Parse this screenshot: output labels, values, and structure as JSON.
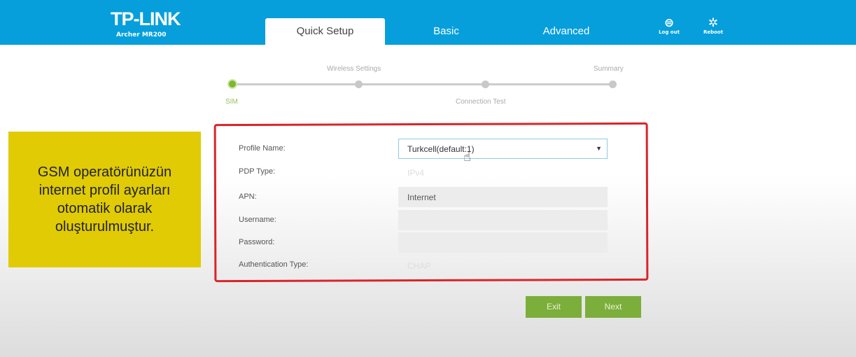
{
  "header": {
    "brand": "TP-LINK",
    "model": "Archer MR200",
    "tabs": [
      {
        "label": "Quick Setup",
        "active": true
      },
      {
        "label": "Basic"
      },
      {
        "label": "Advanced"
      }
    ],
    "logout": "Log out",
    "reboot": "Reboot",
    "color": "#069fdc"
  },
  "steps": [
    {
      "label": "SIM",
      "current": true
    },
    {
      "label": "Wireless Settings"
    },
    {
      "label": "Connection Test"
    },
    {
      "label": "Summary"
    }
  ],
  "callout": {
    "text": "GSM operatörünüzün internet profil ayarları otomatik olarak oluşturulmuştur.",
    "color": "#e0cb05"
  },
  "form": {
    "profile_name": {
      "label": "Profile Name:",
      "value": "Turkcell(default:1)"
    },
    "pdp_type": {
      "label": "PDP Type:",
      "value": "IPv4"
    },
    "apn": {
      "label": "APN:",
      "value": "Internet"
    },
    "username": {
      "label": "Username:",
      "value": ""
    },
    "password": {
      "label": "Password:",
      "value": ""
    },
    "auth_type": {
      "label": "Authentication Type:",
      "value": "CHAP"
    }
  },
  "buttons": {
    "exit": "Exit",
    "next": "Next"
  }
}
